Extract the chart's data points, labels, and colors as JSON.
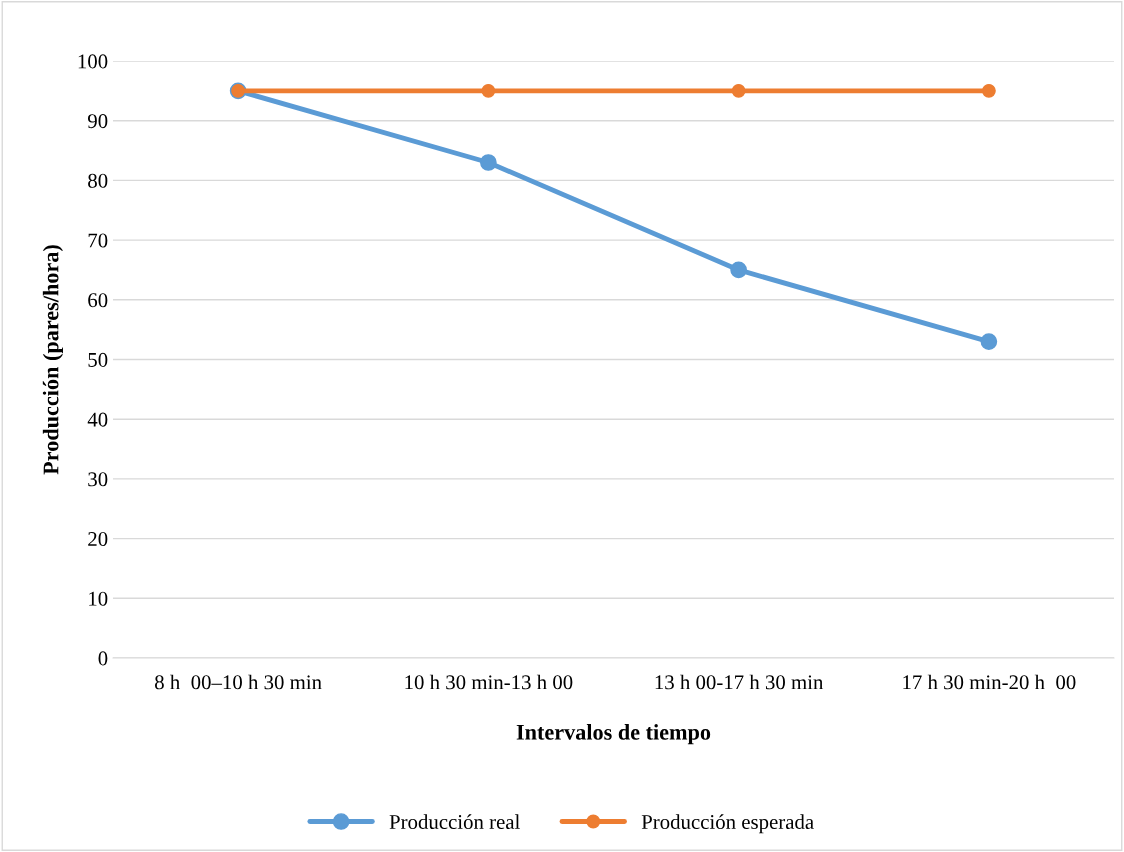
{
  "chart_data": {
    "type": "line",
    "xlabel": "Intervalos de tiempo",
    "ylabel": "Producción (pares/hora)",
    "categories": [
      "8 h  00–10 h 30 min",
      "10 h 30 min-13 h 00",
      "13 h 00-17 h 30 min",
      "17 h 30 min-20 h  00"
    ],
    "series": [
      {
        "name": "Producción real",
        "color": "#5b9bd5",
        "values": [
          95,
          83,
          65,
          53
        ]
      },
      {
        "name": "Producción esperada",
        "color": "#ed7d31",
        "values": [
          95,
          95,
          95,
          95
        ]
      }
    ],
    "ylim": [
      0,
      100
    ],
    "yticks": [
      0,
      10,
      20,
      30,
      40,
      50,
      60,
      70,
      80,
      90,
      100
    ],
    "grid": "y",
    "legend": "bottom",
    "marker": "circle",
    "line_style": "solid"
  }
}
